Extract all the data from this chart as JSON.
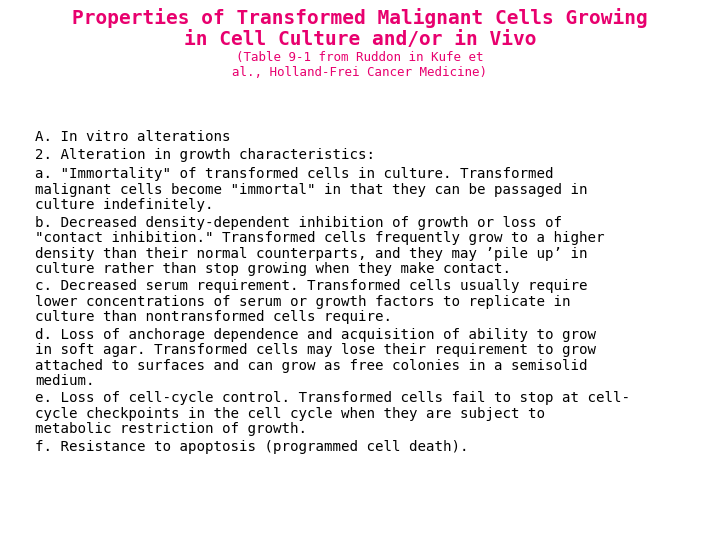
{
  "bg_color": "#ffffff",
  "title_color": "#e8006e",
  "body_color": "#000000",
  "fig_width": 7.2,
  "fig_height": 5.4,
  "dpi": 100,
  "title_bold_fontsize": 14.0,
  "subtitle_fontsize": 9.0,
  "body_fontsize": 10.2,
  "body_lines": [
    "A. In vitro alterations",
    "2. Alteration in growth characteristics:",
    "a. \"Immortality\" of transformed cells in culture. Transformed\nmalignant cells become \"immortal\" in that they can be passaged in\nculture indefinitely.",
    "b. Decreased density-dependent inhibition of growth or loss of\n\"contact inhibition.\" Transformed cells frequently grow to a higher\ndensity than their normal counterparts, and they may ’pile up’ in\nculture rather than stop growing when they make contact.",
    "c. Decreased serum requirement. Transformed cells usually require\nlower concentrations of serum or growth factors to replicate in\nculture than nontransformed cells require.",
    "d. Loss of anchorage dependence and acquisition of ability to grow\nin soft agar. Transformed cells may lose their requirement to grow\nattached to surfaces and can grow as free colonies in a semisolid\nmedium.",
    "e. Loss of cell-cycle control. Transformed cells fail to stop at cell-\ncycle checkpoints in the cell cycle when they are subject to\nmetabolic restriction of growth.",
    "f. Resistance to apoptosis (programmed cell death)."
  ],
  "line_heights": [
    1,
    1,
    3,
    4,
    3,
    4,
    3,
    1
  ]
}
